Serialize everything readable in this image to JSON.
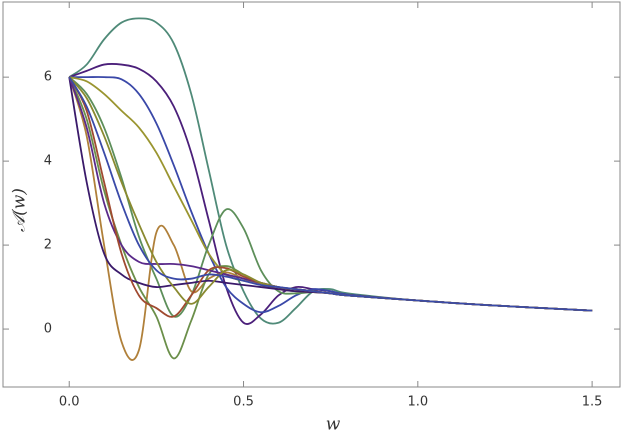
{
  "chart_data": {
    "type": "line",
    "x_label": "w",
    "y_label": "𝒜(w)",
    "xlim": [
      -0.19,
      1.58
    ],
    "ylim": [
      -1.38,
      7.79
    ],
    "xticks": [
      {
        "value": 0,
        "label": "0.0"
      },
      {
        "value": 0.5,
        "label": "0.5"
      },
      {
        "value": 1,
        "label": "1.0"
      },
      {
        "value": 1.5,
        "label": "1.5"
      }
    ],
    "yticks": [
      0,
      2,
      4,
      6
    ],
    "x": [
      0,
      0.05,
      0.1,
      0.15,
      0.2,
      0.25,
      0.3,
      0.35,
      0.4,
      0.45,
      0.5,
      0.55,
      0.6,
      0.65,
      0.7,
      0.75,
      0.8,
      1.0,
      1.2,
      1.5
    ],
    "series": [
      {
        "color": "#4f8a78",
        "values": [
          6,
          6.3,
          6.9,
          7.3,
          7.4,
          7.3,
          6.8,
          5.6,
          3.8,
          2.0,
          0.9,
          0.25,
          0.15,
          0.5,
          0.9,
          0.95,
          0.85,
          0.68,
          0.57,
          0.44
        ]
      },
      {
        "color": "#4b1f7a",
        "values": [
          6,
          6.15,
          6.3,
          6.3,
          6.2,
          5.9,
          5.3,
          4.2,
          2.6,
          1.0,
          0.15,
          0.35,
          0.8,
          1.0,
          0.95,
          0.9,
          0.82,
          0.68,
          0.57,
          0.44
        ]
      },
      {
        "color": "#3a48a8",
        "values": [
          6,
          6,
          6,
          5.95,
          5.6,
          4.9,
          3.9,
          2.8,
          1.8,
          1.0,
          0.6,
          0.4,
          0.55,
          0.8,
          0.95,
          0.9,
          0.82,
          0.68,
          0.57,
          0.44
        ]
      },
      {
        "color": "#9a9530",
        "values": [
          6,
          5.9,
          5.6,
          5.2,
          4.8,
          4.2,
          3.4,
          2.6,
          1.8,
          1.3,
          1.15,
          1.1,
          1.0,
          0.95,
          0.9,
          0.85,
          0.8,
          0.68,
          0.57,
          0.44
        ]
      },
      {
        "color": "#5d8f5a",
        "values": [
          6,
          5.6,
          4.8,
          3.6,
          2.2,
          1.2,
          0.3,
          0.8,
          2.0,
          2.85,
          2.4,
          1.4,
          0.9,
          0.85,
          0.88,
          0.85,
          0.8,
          0.68,
          0.57,
          0.44
        ]
      },
      {
        "color": "#b0803a",
        "values": [
          6,
          4.6,
          2.0,
          -0.3,
          -0.5,
          2.3,
          2.0,
          0.9,
          1.2,
          1.35,
          1.2,
          1.05,
          0.95,
          0.9,
          0.88,
          0.85,
          0.8,
          0.68,
          0.57,
          0.44
        ]
      },
      {
        "color": "#6b8f4a",
        "values": [
          6,
          5.0,
          3.3,
          2.0,
          1.0,
          0.3,
          -0.7,
          0.2,
          1.3,
          1.5,
          1.3,
          1.1,
          1.0,
          0.95,
          0.9,
          0.85,
          0.8,
          0.68,
          0.57,
          0.44
        ]
      },
      {
        "color": "#3a1a6a",
        "values": [
          6,
          3.5,
          1.8,
          1.3,
          1.1,
          1.0,
          1.05,
          1.1,
          1.15,
          1.1,
          1.05,
          1.0,
          0.95,
          0.9,
          0.88,
          0.85,
          0.8,
          0.68,
          0.57,
          0.44
        ]
      },
      {
        "color": "#5a2a8a",
        "values": [
          6,
          4.8,
          3.0,
          2.0,
          1.6,
          1.55,
          1.55,
          1.5,
          1.4,
          1.3,
          1.2,
          1.1,
          1.0,
          0.95,
          0.9,
          0.85,
          0.8,
          0.68,
          0.57,
          0.44
        ]
      },
      {
        "color": "#a04a30",
        "values": [
          6,
          5.2,
          3.5,
          1.8,
          0.8,
          0.5,
          0.3,
          0.8,
          1.4,
          1.45,
          1.25,
          1.1,
          1.0,
          0.95,
          0.9,
          0.85,
          0.8,
          0.68,
          0.57,
          0.44
        ]
      },
      {
        "color": "#8a8a30",
        "values": [
          6,
          5.5,
          4.6,
          3.5,
          2.5,
          1.6,
          1.0,
          0.6,
          1.0,
          1.4,
          1.3,
          1.1,
          1.0,
          0.95,
          0.9,
          0.85,
          0.8,
          0.68,
          0.57,
          0.44
        ]
      },
      {
        "color": "#3a4aa8",
        "values": [
          6,
          5.3,
          4.2,
          3.0,
          2.0,
          1.4,
          1.2,
          1.2,
          1.3,
          1.25,
          1.15,
          1.05,
          1.0,
          0.95,
          0.9,
          0.85,
          0.8,
          0.68,
          0.57,
          0.44
        ]
      }
    ]
  }
}
